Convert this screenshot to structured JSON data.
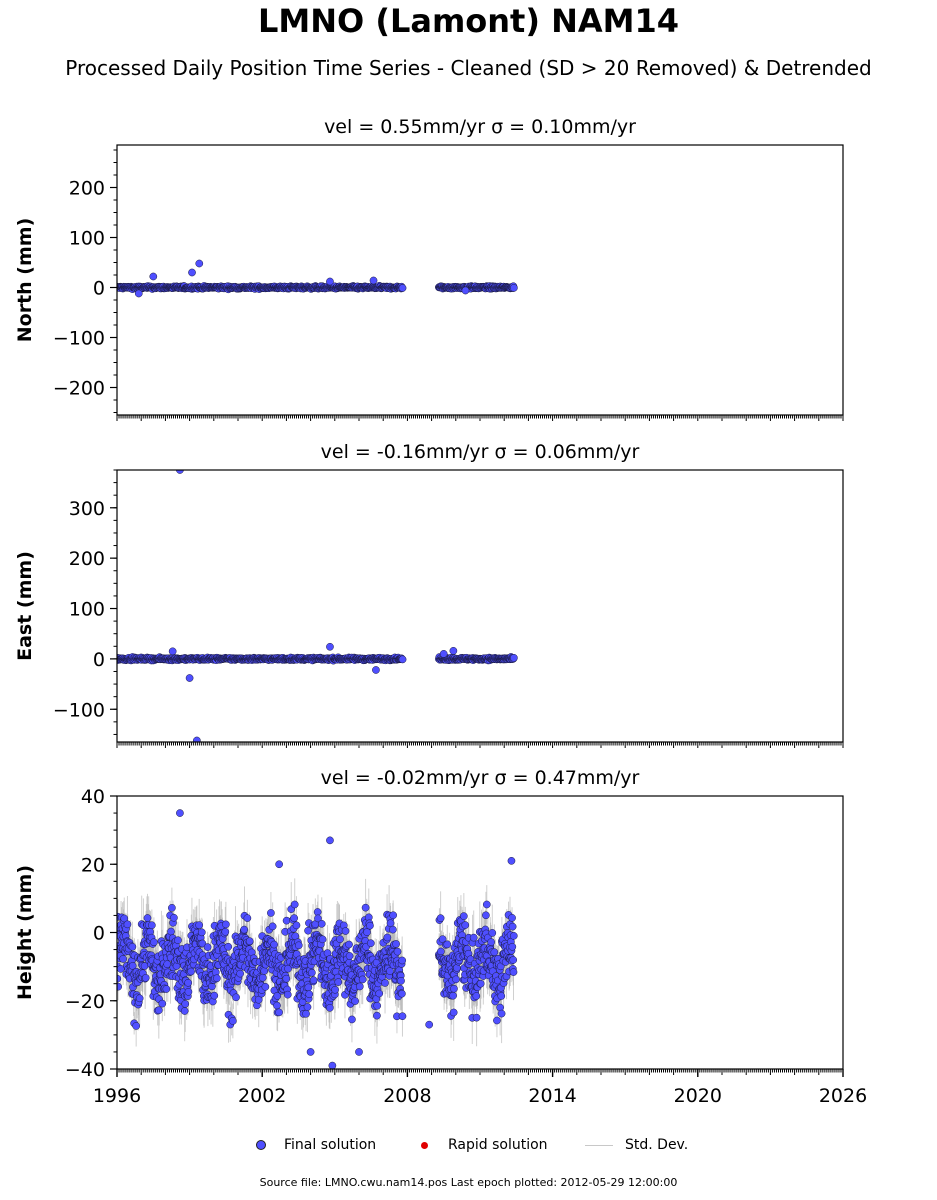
{
  "title": "LMNO (Lamont) NAM14",
  "subtitle": "Processed Daily Position Time Series - Cleaned (SD > 20 Removed) & Detrended",
  "legend": {
    "final": "Final solution",
    "rapid": "Rapid solution",
    "std": "Std. Dev."
  },
  "footer": "Source file: LMNO.cwu.nam14.pos  Last epoch plotted: 2012-05-29 12:00:00",
  "colors": {
    "final": "#4f4fff",
    "rapid": "#e00000",
    "std": "#b0b0b0"
  },
  "chart_data": [
    {
      "type": "scatter",
      "title": "vel = 0.55mm/yr   σ = 0.10mm/yr",
      "ylabel": "North (mm)",
      "xlim": [
        1996,
        2026
      ],
      "ylim": [
        -255,
        285
      ],
      "yticks": [
        "200",
        "100",
        "0",
        "−100",
        "−200"
      ],
      "ytick_values": [
        200,
        100,
        0,
        -100,
        -200
      ],
      "xticks": [],
      "segments": [
        [
          1996.0,
          2007.8
        ],
        [
          2009.3,
          2012.4
        ]
      ],
      "noise": 3,
      "outliers": [
        [
          1997.5,
          22
        ],
        [
          1999.1,
          30
        ],
        [
          1999.4,
          48
        ],
        [
          2004.8,
          12
        ],
        [
          2006.6,
          14
        ],
        [
          1996.9,
          -12
        ],
        [
          2010.4,
          -6
        ]
      ]
    },
    {
      "type": "scatter",
      "title": "vel = -0.16mm/yr   σ = 0.06mm/yr",
      "ylabel": "East (mm)",
      "xlim": [
        1996,
        2026
      ],
      "ylim": [
        -165,
        375
      ],
      "yticks": [
        "300",
        "200",
        "100",
        "0",
        "−100"
      ],
      "ytick_values": [
        300,
        200,
        100,
        0,
        -100
      ],
      "xticks": [],
      "segments": [
        [
          1996.0,
          2007.8
        ],
        [
          2009.3,
          2012.4
        ]
      ],
      "noise": 3,
      "outliers": [
        [
          1998.6,
          375
        ],
        [
          1998.3,
          15
        ],
        [
          1999.0,
          -38
        ],
        [
          1999.3,
          -162
        ],
        [
          2004.8,
          24
        ],
        [
          2006.7,
          -22
        ],
        [
          2009.5,
          10
        ],
        [
          2009.9,
          16
        ]
      ]
    },
    {
      "type": "scatter",
      "title": "vel = -0.02mm/yr   σ = 0.47mm/yr",
      "ylabel": "Height (mm)",
      "xlim": [
        1996,
        2026
      ],
      "ylim": [
        -40,
        40
      ],
      "yticks": [
        "40",
        "20",
        "0",
        "−20",
        "−40"
      ],
      "ytick_values": [
        40,
        20,
        0,
        -20,
        -40
      ],
      "xticks": [
        "1996",
        "2002",
        "2008",
        "2014",
        "2020",
        "2026"
      ],
      "xtick_values": [
        1996,
        2002,
        2008,
        2014,
        2020,
        2026
      ],
      "segments": [
        [
          1996.0,
          2007.8
        ],
        [
          2009.3,
          2012.4
        ]
      ],
      "center": -9,
      "noise": 9,
      "outliers": [
        [
          1998.6,
          35
        ],
        [
          2002.7,
          20
        ],
        [
          2004.8,
          27
        ],
        [
          2012.3,
          21
        ],
        [
          2004.0,
          -35
        ],
        [
          2004.9,
          -39
        ],
        [
          2006.0,
          -35
        ],
        [
          2008.9,
          -27
        ]
      ]
    }
  ]
}
